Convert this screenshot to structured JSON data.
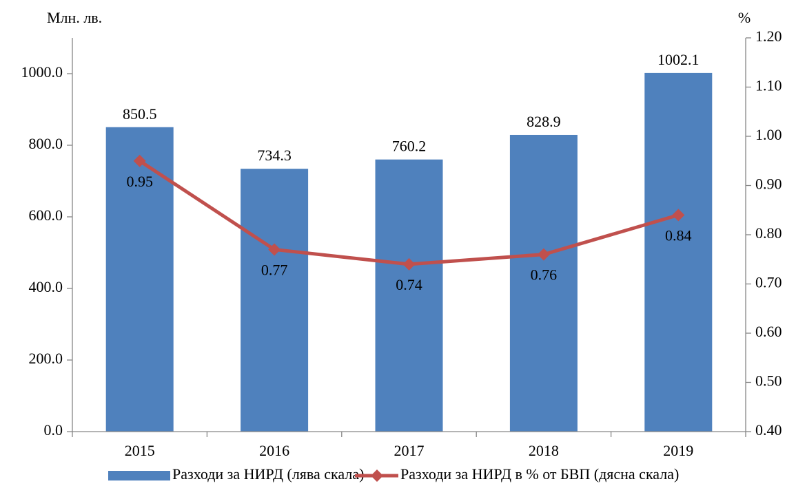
{
  "chart_data": {
    "type": "bar",
    "y_label": "Млн. лв.",
    "y2_label": "%",
    "categories": [
      "2015",
      "2016",
      "2017",
      "2018",
      "2019"
    ],
    "series": [
      {
        "name": "Разходи за НИРД (лява скала)",
        "type": "bar",
        "color": "#4f81bd",
        "values": [
          850.5,
          734.3,
          760.2,
          828.9,
          1002.1
        ]
      },
      {
        "name": "Разходи за НИРД в % от БВП (дясна скала)",
        "type": "line",
        "axis": "y2",
        "color": "#c0504d",
        "values": [
          0.95,
          0.77,
          0.74,
          0.76,
          0.84
        ]
      }
    ],
    "ylim": [
      0,
      1100
    ],
    "yticks": [
      {
        "value": 0,
        "label": "0.0"
      },
      {
        "value": 200,
        "label": "200.0"
      },
      {
        "value": 400,
        "label": "400.0"
      },
      {
        "value": 600,
        "label": "600.0"
      },
      {
        "value": 800,
        "label": "800.0"
      },
      {
        "value": 1000,
        "label": "1000.0"
      }
    ],
    "y2lim": [
      0.4,
      1.2
    ],
    "y2ticks": [
      {
        "value": 0.4,
        "label": "0.40"
      },
      {
        "value": 0.5,
        "label": "0.50"
      },
      {
        "value": 0.6,
        "label": "0.60"
      },
      {
        "value": 0.7,
        "label": "0.70"
      },
      {
        "value": 0.8,
        "label": "0.80"
      },
      {
        "value": 0.9,
        "label": "0.90"
      },
      {
        "value": 1.0,
        "label": "1.00"
      },
      {
        "value": 1.1,
        "label": "1.10"
      },
      {
        "value": 1.2,
        "label": "1.20"
      }
    ],
    "grid": false
  }
}
